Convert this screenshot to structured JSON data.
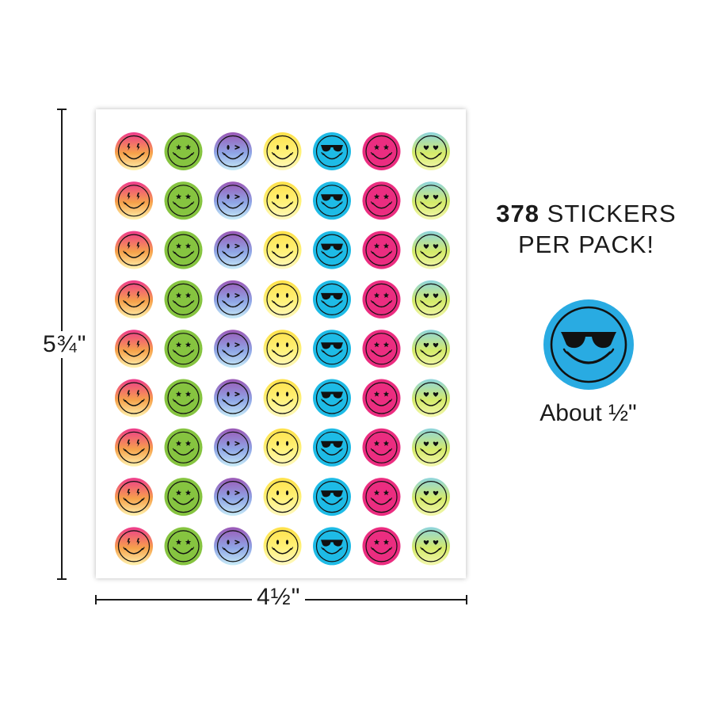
{
  "sheet": {
    "rows": 9,
    "styles": [
      {
        "name": "lightning",
        "colors": [
          "#ee3a8c",
          "#f6a24a",
          "#fff3b0"
        ]
      },
      {
        "name": "star-eyes",
        "colors": [
          "#86c440",
          "#86c440",
          "#86c440"
        ]
      },
      {
        "name": "wink",
        "colors": [
          "#9b58b6",
          "#8fa6e6",
          "#c8ecf7"
        ]
      },
      {
        "name": "yellow",
        "colors": [
          "#ffe14a",
          "#fff27a",
          "#fff8c2"
        ]
      },
      {
        "name": "sunglasses",
        "colors": [
          "#1ebbe6",
          "#1ebbe6",
          "#1ebbe6"
        ]
      },
      {
        "name": "star-eyes-pink",
        "colors": [
          "#eb2d80",
          "#eb2d80",
          "#eb2d80"
        ]
      },
      {
        "name": "heart-eyes",
        "colors": [
          "#8dd4dd",
          "#d5eb6a",
          "#f3f7b0"
        ]
      }
    ]
  },
  "dimensions": {
    "height": "5¾\"",
    "width": "4½\""
  },
  "promo": {
    "count": "378",
    "line1_rest": " STICKERS",
    "line2": "PER PACK!"
  },
  "sample": {
    "caption": "About ½\"",
    "color": "#29abe2"
  }
}
